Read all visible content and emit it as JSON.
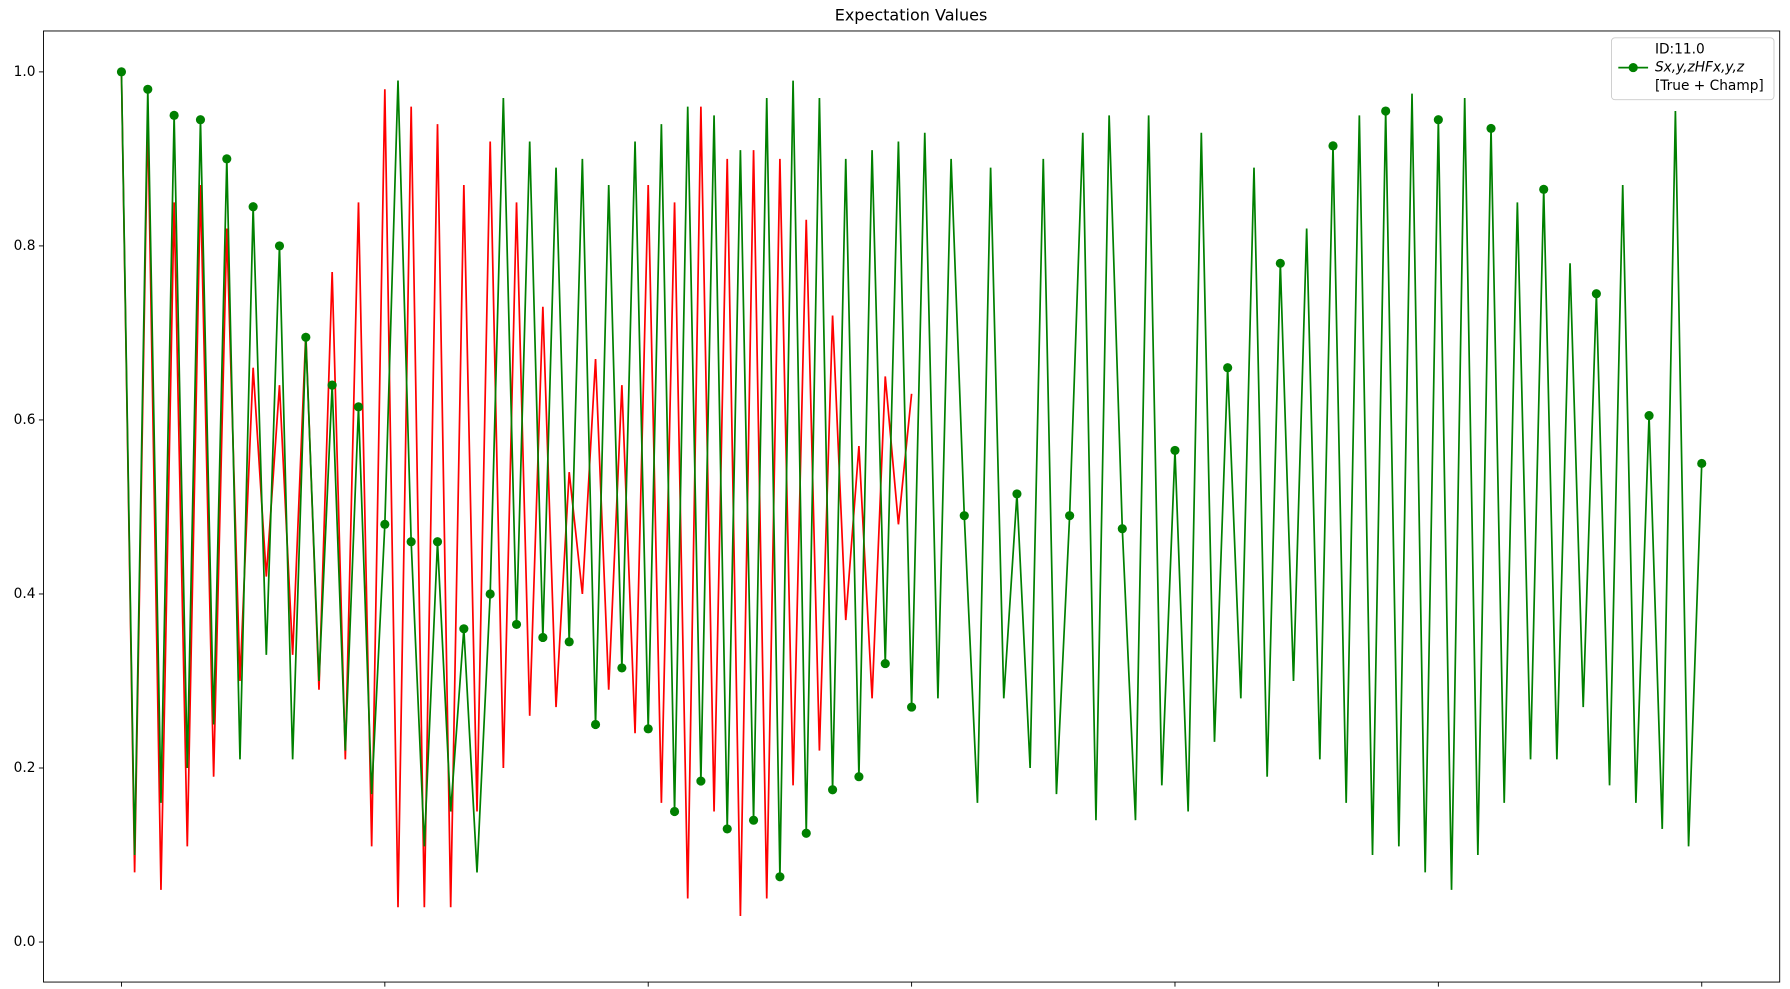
{
  "chart_data": {
    "type": "line",
    "title": "Expectation Values",
    "xlim": [
      -1.48,
      31.48
    ],
    "ylim": [
      -0.046,
      1.047
    ],
    "xticks": [
      0,
      5,
      10,
      15,
      20,
      25,
      30
    ],
    "yticks": [
      {
        "value": 0,
        "label": "0.0"
      },
      {
        "value": 0.2,
        "label": "0.2"
      },
      {
        "value": 0.4,
        "label": "0.4"
      },
      {
        "value": 0.6,
        "label": "0.6"
      },
      {
        "value": 0.8,
        "label": "0.8"
      },
      {
        "value": 1,
        "label": "1.0"
      }
    ],
    "grid": false,
    "legend_position": "upper right",
    "legend_title": "ID:11.0",
    "series": [
      {
        "name": "Sx,y,zHFx,y,z",
        "label_note": "[True + Champ]",
        "color": "#008000",
        "marker": "circle",
        "markevery": [
          0,
          2,
          4,
          6,
          8,
          10,
          12,
          14,
          16,
          18,
          20,
          22,
          24,
          26,
          28,
          30,
          32,
          34,
          36,
          38,
          40,
          42,
          44,
          46,
          48,
          50,
          52,
          54,
          56,
          58,
          60,
          64,
          68,
          72,
          76,
          80,
          84,
          88,
          92,
          96,
          100,
          104,
          108,
          112,
          116,
          120
        ],
        "x": [
          0,
          0.25,
          0.5,
          0.75,
          1,
          1.25,
          1.5,
          1.75,
          2,
          2.25,
          2.5,
          2.75,
          3,
          3.25,
          3.5,
          3.75,
          4,
          4.25,
          4.5,
          4.75,
          5,
          5.25,
          5.5,
          5.75,
          6,
          6.25,
          6.5,
          6.75,
          7,
          7.25,
          7.5,
          7.75,
          8,
          8.25,
          8.5,
          8.75,
          9,
          9.25,
          9.5,
          9.75,
          10,
          10.25,
          10.5,
          10.75,
          11,
          11.25,
          11.5,
          11.75,
          12,
          12.25,
          12.5,
          12.75,
          13,
          13.25,
          13.5,
          13.75,
          14,
          14.25,
          14.5,
          14.75,
          15,
          15.25,
          15.5,
          15.75,
          16,
          16.25,
          16.5,
          16.75,
          17,
          17.25,
          17.5,
          17.75,
          18,
          18.25,
          18.5,
          18.75,
          19,
          19.25,
          19.5,
          19.75,
          20,
          20.25,
          20.5,
          20.75,
          21,
          21.25,
          21.5,
          21.75,
          22,
          22.25,
          22.5,
          22.75,
          23,
          23.25,
          23.5,
          23.75,
          24,
          24.25,
          24.5,
          24.75,
          25,
          25.25,
          25.5,
          25.75,
          26,
          26.25,
          26.5,
          26.75,
          27,
          27.25,
          27.5,
          27.75,
          28,
          28.25,
          28.5,
          28.75,
          29,
          29.25,
          29.5,
          29.75,
          30
        ],
        "values": [
          1.0,
          0.1,
          0.98,
          0.16,
          0.95,
          0.2,
          0.945,
          0.25,
          0.9,
          0.21,
          0.845,
          0.33,
          0.8,
          0.21,
          0.695,
          0.3,
          0.64,
          0.22,
          0.615,
          0.17,
          0.48,
          0.99,
          0.46,
          0.11,
          0.46,
          0.15,
          0.36,
          0.08,
          0.4,
          0.97,
          0.365,
          0.92,
          0.35,
          0.89,
          0.345,
          0.9,
          0.25,
          0.87,
          0.315,
          0.92,
          0.245,
          0.94,
          0.15,
          0.96,
          0.185,
          0.95,
          0.13,
          0.91,
          0.14,
          0.97,
          0.075,
          0.99,
          0.125,
          0.97,
          0.175,
          0.9,
          0.19,
          0.91,
          0.32,
          0.92,
          0.27,
          0.93,
          0.28,
          0.9,
          0.49,
          0.16,
          0.89,
          0.28,
          0.515,
          0.2,
          0.9,
          0.17,
          0.49,
          0.93,
          0.14,
          0.95,
          0.475,
          0.14,
          0.95,
          0.18,
          0.565,
          0.15,
          0.93,
          0.23,
          0.66,
          0.28,
          0.89,
          0.19,
          0.78,
          0.3,
          0.82,
          0.21,
          0.915,
          0.16,
          0.95,
          0.1,
          0.955,
          0.11,
          0.975,
          0.08,
          0.945,
          0.06,
          0.97,
          0.1,
          0.935,
          0.16,
          0.85,
          0.21,
          0.865,
          0.21,
          0.78,
          0.27,
          0.745,
          0.18,
          0.87,
          0.16,
          0.605,
          0.13,
          0.955,
          0.11,
          0.55
        ]
      },
      {
        "color": "#ff0000",
        "x": [
          0,
          0.25,
          0.5,
          0.75,
          1,
          1.25,
          1.5,
          1.75,
          2,
          2.25,
          2.5,
          2.75,
          3,
          3.25,
          3.5,
          3.75,
          4,
          4.25,
          4.5,
          4.75,
          5,
          5.25,
          5.5,
          5.75,
          6,
          6.25,
          6.5,
          6.75,
          7,
          7.25,
          7.5,
          7.75,
          8,
          8.25,
          8.5,
          8.75,
          9,
          9.25,
          9.5,
          9.75,
          10,
          10.25,
          10.5,
          10.75,
          11,
          11.25,
          11.5,
          11.75,
          12,
          12.25,
          12.5,
          12.75,
          13,
          13.25,
          13.5,
          13.75,
          14,
          14.25,
          14.5,
          14.75,
          15
        ],
        "values": [
          1.0,
          0.08,
          0.95,
          0.06,
          0.85,
          0.11,
          0.87,
          0.19,
          0.82,
          0.3,
          0.66,
          0.42,
          0.64,
          0.33,
          0.7,
          0.29,
          0.77,
          0.21,
          0.85,
          0.11,
          0.98,
          0.04,
          0.96,
          0.04,
          0.94,
          0.04,
          0.87,
          0.15,
          0.92,
          0.2,
          0.85,
          0.26,
          0.73,
          0.27,
          0.54,
          0.4,
          0.67,
          0.29,
          0.64,
          0.24,
          0.87,
          0.16,
          0.85,
          0.05,
          0.96,
          0.15,
          0.9,
          0.03,
          0.91,
          0.05,
          0.9,
          0.18,
          0.83,
          0.22,
          0.72,
          0.37,
          0.57,
          0.28,
          0.65,
          0.48,
          0.63
        ]
      }
    ]
  }
}
